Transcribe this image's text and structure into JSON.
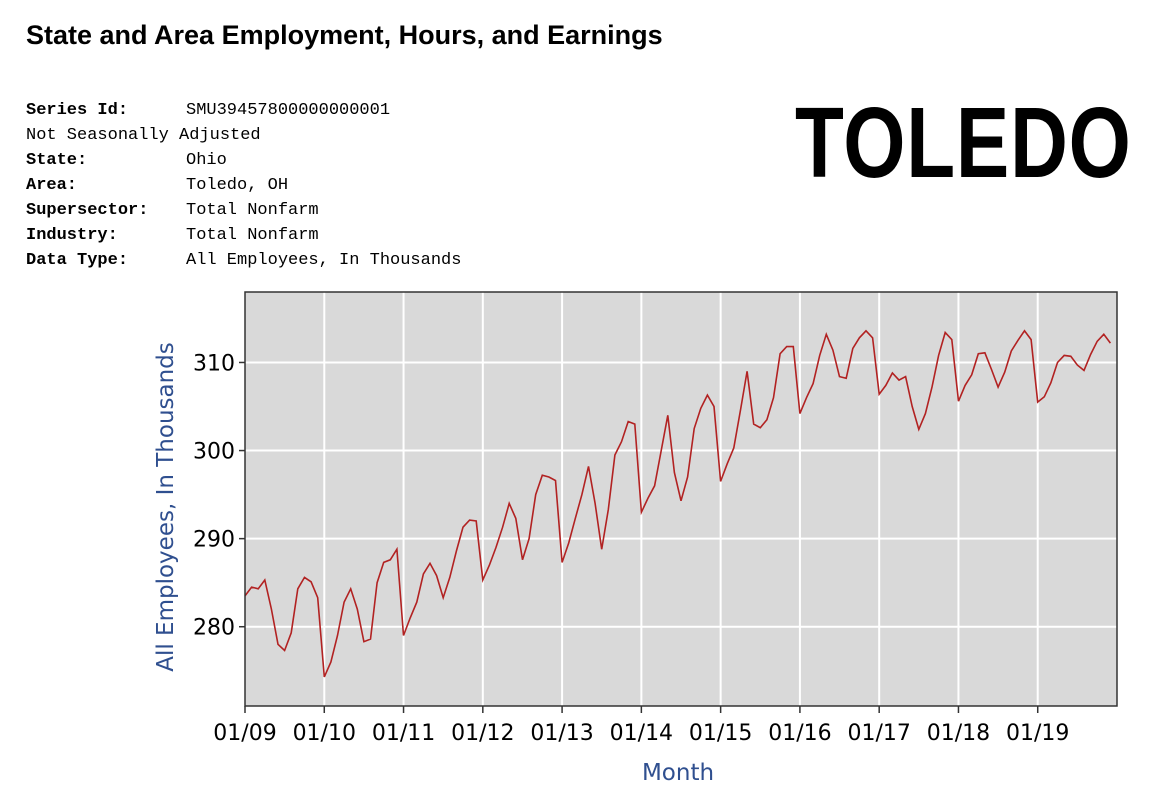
{
  "header": {
    "title": "State and Area Employment, Hours, and Earnings",
    "city_label": "TOLEDO"
  },
  "meta": [
    {
      "key": "Series Id:",
      "value": "SMU39457800000000001"
    },
    {
      "key": "Not Seasonally Adjusted",
      "value": ""
    },
    {
      "key": "State:",
      "value": "Ohio"
    },
    {
      "key": "Area:",
      "value": "Toledo, OH"
    },
    {
      "key": "Supersector:",
      "value": "Total Nonfarm"
    },
    {
      "key": "Industry:",
      "value": "Total Nonfarm"
    },
    {
      "key": "Data Type:",
      "value": "All Employees, In Thousands"
    }
  ],
  "colors": {
    "line": "#b22222",
    "plot_bg": "#d9d9d9",
    "grid": "#ffffff",
    "axis_label": "#2f4f8f"
  },
  "chart_data": {
    "type": "line",
    "title": "",
    "xlabel": "Month",
    "ylabel": "All Employees, In Thousands",
    "ylim": [
      271,
      318
    ],
    "yticks": [
      280,
      290,
      300,
      310
    ],
    "x_range": [
      "01/09",
      "12/19"
    ],
    "xtick_labels": [
      "01/09",
      "01/10",
      "01/11",
      "01/12",
      "01/13",
      "01/14",
      "01/15",
      "01/16",
      "01/17",
      "01/18",
      "01/19"
    ],
    "grid": true,
    "series": [
      {
        "name": "Toledo, OH Total Nonfarm",
        "start": "01/09",
        "frequency": "monthly",
        "values": [
          283.5,
          284.5,
          284.3,
          285.3,
          282.0,
          278.0,
          277.3,
          279.3,
          284.3,
          285.6,
          285.1,
          283.3,
          274.3,
          276.0,
          279.0,
          282.8,
          284.3,
          282.0,
          278.3,
          278.6,
          285.0,
          287.3,
          287.6,
          288.8,
          279.0,
          281.0,
          282.8,
          286.0,
          287.2,
          285.8,
          283.3,
          285.6,
          288.6,
          291.3,
          292.1,
          292.0,
          285.3,
          287.0,
          289.0,
          291.3,
          294.0,
          292.3,
          287.6,
          290.0,
          295.0,
          297.2,
          297.0,
          296.6,
          287.3,
          289.5,
          292.3,
          295.0,
          298.2,
          294.0,
          288.8,
          293.3,
          299.5,
          301.0,
          303.3,
          303.0,
          293.0,
          294.6,
          296.0,
          300.0,
          304.0,
          297.5,
          294.3,
          297.0,
          302.5,
          304.8,
          306.3,
          305.0,
          296.5,
          298.5,
          300.3,
          304.6,
          309.0,
          303.0,
          302.6,
          303.5,
          306.0,
          311.0,
          311.8,
          311.8,
          304.2,
          306.0,
          307.6,
          310.8,
          313.2,
          311.4,
          308.4,
          308.2,
          311.6,
          312.8,
          313.6,
          312.8,
          306.4,
          307.4,
          308.8,
          308.0,
          308.4,
          305.0,
          302.4,
          304.2,
          307.2,
          310.8,
          313.4,
          312.6,
          305.6,
          307.4,
          308.6,
          311.0,
          311.1,
          309.2,
          307.2,
          308.9,
          311.3,
          312.5,
          313.6,
          312.6,
          305.5,
          306.1,
          307.7,
          310.0,
          310.8,
          310.7,
          309.7,
          309.1,
          310.9,
          312.4,
          313.2,
          312.2
        ]
      }
    ]
  }
}
